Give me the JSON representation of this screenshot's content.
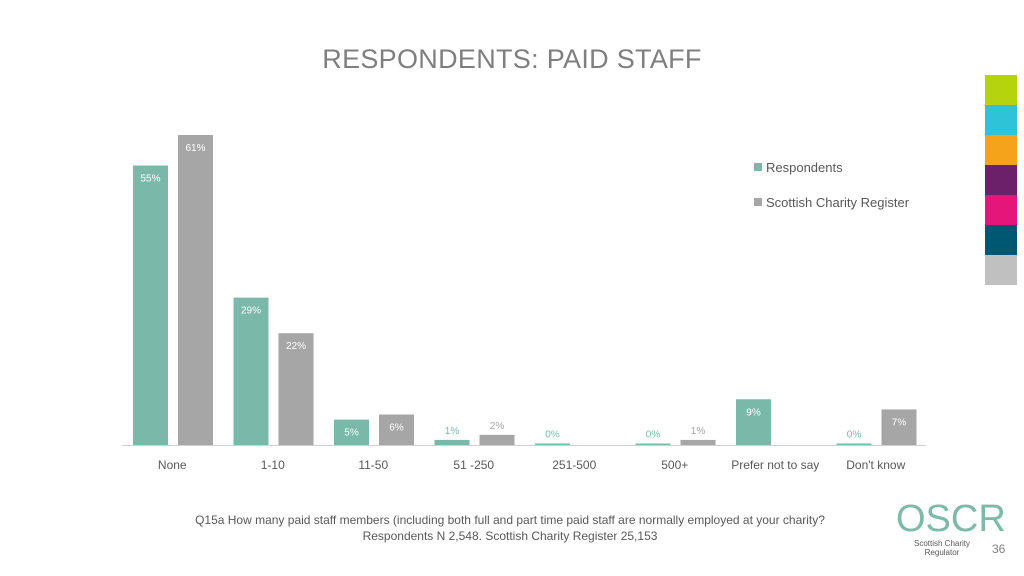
{
  "slide": {
    "title": "RESPONDENTS: PAID STAFF",
    "footnote_line1": "Q15a How many paid staff members (including both full and part time paid staff are normally employed at your charity?",
    "footnote_line2": "Respondents N 2,548. Scottish Charity Register 25,153",
    "page_number": "36"
  },
  "logo": {
    "text": "OSCR",
    "subtitle": "Scottish Charity Regulator"
  },
  "color_strip": [
    "#b5d40c",
    "#2ec4d8",
    "#f5a31a",
    "#6b2069",
    "#e6157a",
    "#005772",
    "#c0c0c0"
  ],
  "chart_data": {
    "type": "bar",
    "categories": [
      "None",
      "1-10",
      "11-50",
      "51 -250",
      "251-500",
      "500+",
      "Prefer not to say",
      "Don't know"
    ],
    "series": [
      {
        "name": "Respondents",
        "color": "#7ab8aa",
        "values": [
          55,
          29,
          5,
          1,
          0,
          0,
          9,
          0
        ],
        "labels": [
          "55%",
          "29%",
          "5%",
          "1%",
          "0%",
          "0%",
          "9%",
          "0%"
        ]
      },
      {
        "name": "Scottish Charity Register",
        "color": "#a6a6a6",
        "values": [
          61,
          22,
          6,
          2,
          null,
          1,
          null,
          7
        ],
        "labels": [
          "61%",
          "22%",
          "6%",
          "2%",
          "",
          "1%",
          "",
          "7%"
        ]
      }
    ],
    "ylim": [
      0,
      61
    ],
    "grid": false,
    "legend_position": "right"
  }
}
